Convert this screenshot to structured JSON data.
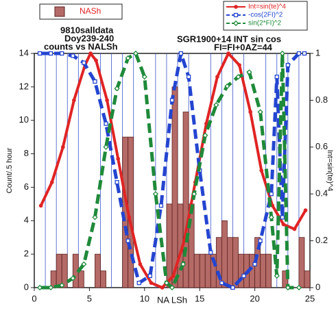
{
  "chart_data": {
    "type": "histogram",
    "name": "NASh",
    "color": "#b46a66",
    "bins": [
      0,
      0.5,
      1,
      1.5,
      2,
      2.5,
      3,
      3.5,
      4,
      4.5,
      5,
      5.5,
      6,
      6.5,
      7,
      7.5,
      8,
      8.5,
      9,
      9.5,
      10,
      10.5,
      11,
      11.5,
      12,
      12.5,
      13,
      13.5,
      14,
      14.5,
      15,
      15.5,
      16,
      16.5,
      17,
      17.5,
      18,
      18.5,
      19,
      19.5,
      20,
      20.5,
      21,
      21.5,
      22,
      22.5,
      23,
      23.5,
      24,
      24.5,
      25
    ],
    "counts": [
      0,
      0,
      0,
      1,
      2,
      2,
      0,
      2,
      1,
      0,
      0,
      2,
      1,
      0,
      0,
      0,
      9,
      9,
      0,
      0,
      0,
      0,
      0,
      0,
      5,
      12,
      5,
      10.5,
      5,
      2,
      2,
      2,
      2,
      3,
      4,
      3,
      3,
      2,
      2,
      2,
      3,
      2,
      2,
      0,
      0,
      1,
      0,
      0,
      3,
      1
    ],
    "annotations": [
      "9810salldata",
      "Doy239-240",
      "counts vs NALSh",
      "SGR1900+14 INT sin cos",
      "FI=FI+0AZ=44"
    ],
    "xlabel": "NA LSh",
    "ylabel": "Count/.5 hour",
    "y2label": "Int=sin(te)^4",
    "xlim": [
      0,
      25
    ],
    "xticks": [
      0,
      5,
      10,
      15,
      20,
      25
    ],
    "x_minor_ticks": [
      1,
      2,
      3,
      4,
      6,
      7,
      8,
      9,
      11,
      12,
      13,
      14,
      16,
      17,
      18,
      19,
      21,
      22,
      23,
      24
    ],
    "ylim": [
      0,
      14
    ],
    "yticks": [
      0,
      2,
      4,
      6,
      8,
      10,
      12,
      14
    ],
    "y2lim": [
      0,
      1
    ],
    "y2ticks": [
      0,
      0.2,
      0.4,
      0.6,
      0.8,
      1
    ],
    "series": [
      {
        "type": "line",
        "name": "Int=sin(te)^4",
        "color": "#e02424",
        "marker": "circle",
        "dash": "solid",
        "axis": "y2",
        "x": [
          0.6,
          1.6,
          2.6,
          3.6,
          4.6,
          5.1,
          5.6,
          6.6,
          7.6,
          8.6,
          9.6,
          10.6,
          11.6,
          12.6,
          13.6,
          14.6,
          15.6,
          16.6,
          17.6,
          18.6,
          19.6,
          20.6,
          21.6,
          22.6,
          23.6,
          24.6
        ],
        "values": [
          0.35,
          0.45,
          0.6,
          0.8,
          0.95,
          1.0,
          0.97,
          0.8,
          0.55,
          0.3,
          0.1,
          0.02,
          0.0,
          0.05,
          0.2,
          0.45,
          0.7,
          0.9,
          1.0,
          0.95,
          0.75,
          0.5,
          0.35,
          0.27,
          0.25,
          0.33
        ]
      },
      {
        "type": "line",
        "name": "-cos(2FI)^2",
        "color": "#2445d0",
        "marker": "square",
        "dash": "dashed",
        "axis": "y2",
        "x": [
          0.5,
          1.5,
          2.5,
          3.5,
          4.5,
          5.5,
          6.5,
          7.5,
          8.5,
          9.5,
          10.5,
          11.5,
          12.5,
          13.3,
          14,
          15,
          16,
          17,
          18,
          19,
          20,
          20.5,
          21.5,
          22,
          22.5,
          23,
          24,
          24.5
        ],
        "values": [
          1,
          1,
          1,
          0.99,
          0.96,
          0.88,
          0.7,
          0.45,
          0.2,
          0.02,
          0.05,
          0.35,
          0.8,
          1.0,
          0.9,
          0.5,
          0.15,
          0.02,
          0.0,
          0.05,
          0.1,
          0.2,
          0.4,
          0.9,
          0.3,
          0.95,
          1.0,
          1.0
        ]
      },
      {
        "type": "line",
        "name": "sin(2*FI)^2",
        "color": "#1f8a3a",
        "marker": "diamond",
        "dash": "dashed",
        "axis": "y2",
        "x": [
          0.5,
          1.5,
          2.5,
          3.5,
          4.5,
          5.5,
          6.5,
          7.5,
          8.5,
          9.2,
          10,
          11,
          12,
          12.5,
          13.5,
          14.5,
          15.5,
          16.5,
          17.5,
          18.5,
          19.5,
          20.5,
          21.5,
          22,
          22.5,
          23,
          24
        ],
        "values": [
          0,
          0,
          0.01,
          0.04,
          0.1,
          0.3,
          0.6,
          0.85,
          0.98,
          1.0,
          0.9,
          0.4,
          0.02,
          0.0,
          0.1,
          0.4,
          0.65,
          0.78,
          0.86,
          0.9,
          0.92,
          0.75,
          0.3,
          0.05,
          1.0,
          0.0,
          0.0
        ]
      }
    ]
  }
}
